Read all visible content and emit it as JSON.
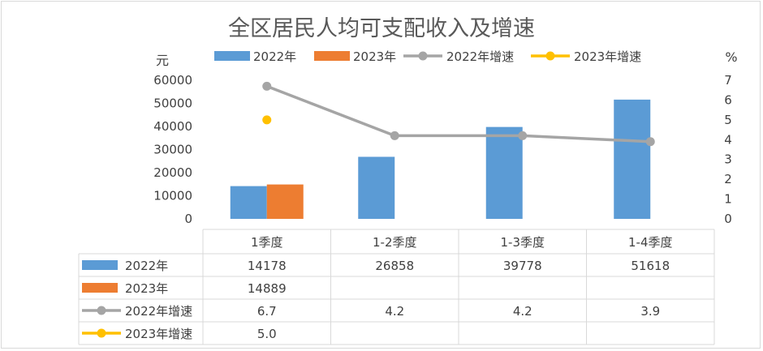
{
  "chart_data": {
    "type": "bar",
    "title": "全区居民人均可支配收入及增速",
    "categories": [
      "1季度",
      "1-2季度",
      "1-3季度",
      "1-4季度"
    ],
    "series": [
      {
        "name": "2022年",
        "kind": "bar",
        "axis": "left",
        "color": "#5B9BD5",
        "values": [
          14178,
          26858,
          39778,
          51618
        ]
      },
      {
        "name": "2023年",
        "kind": "bar",
        "axis": "left",
        "color": "#ED7D31",
        "values": [
          14889,
          null,
          null,
          null
        ]
      },
      {
        "name": "2022年增速",
        "kind": "line",
        "axis": "right",
        "color": "#A5A5A5",
        "values": [
          6.7,
          4.2,
          4.2,
          3.9
        ]
      },
      {
        "name": "2023年增速",
        "kind": "line",
        "axis": "right",
        "color": "#FFC000",
        "values": [
          5.0,
          null,
          null,
          null
        ]
      }
    ],
    "ylabel": "元",
    "ylabel_right": "%",
    "ylim": [
      0,
      60000
    ],
    "ylim_right": [
      0,
      7
    ],
    "y_ticks": [
      "60000",
      "50000",
      "40000",
      "30000",
      "20000",
      "10000",
      "0"
    ],
    "y_ticks_right": [
      "7",
      "6",
      "5",
      "4",
      "3",
      "2",
      "1",
      "0"
    ],
    "legend_placement": "top",
    "grid": false,
    "data_table": true
  },
  "table_cells": [
    [
      "14178",
      "26858",
      "39778",
      "51618"
    ],
    [
      "14889",
      "",
      "",
      ""
    ],
    [
      "6.7",
      "4.2",
      "4.2",
      "3.9"
    ],
    [
      "5.0",
      "",
      "",
      ""
    ]
  ]
}
